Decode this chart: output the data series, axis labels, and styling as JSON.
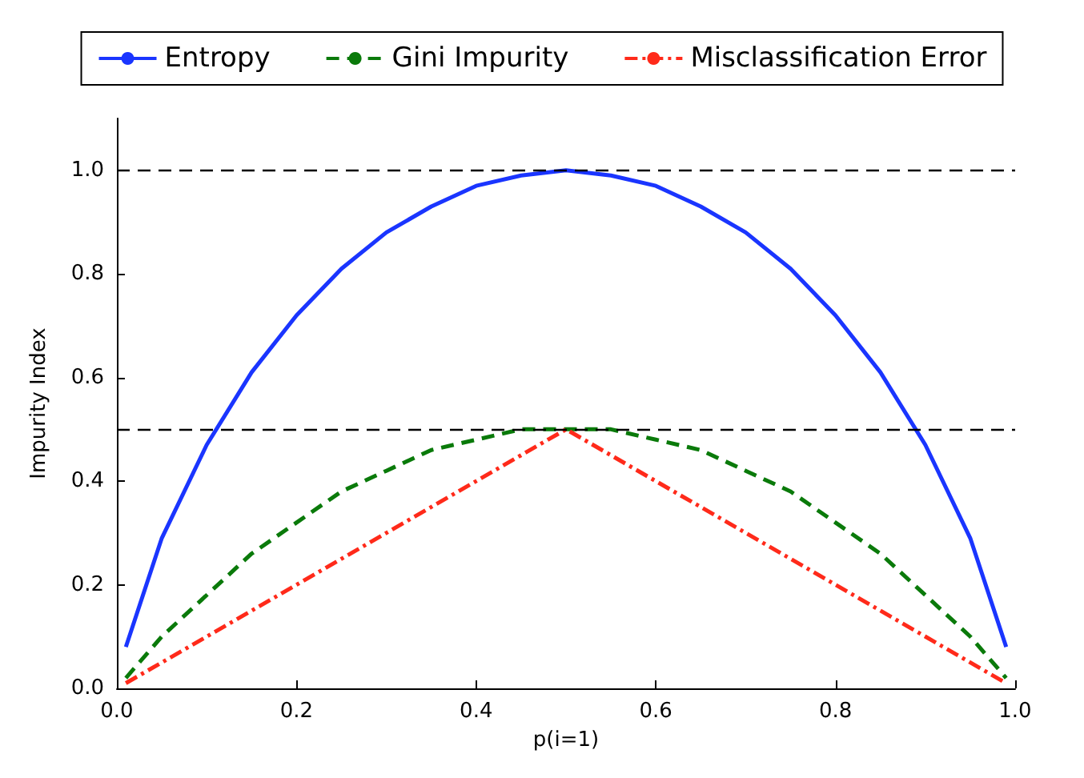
{
  "chart_data": {
    "type": "line",
    "xlabel": "p(i=1)",
    "ylabel": "Impurity Index",
    "xlim": [
      0,
      1
    ],
    "ylim": [
      0,
      1.1
    ],
    "xticks": [
      {
        "value": 0,
        "label": "0.0"
      },
      {
        "value": 0.2,
        "label": "0.2"
      },
      {
        "value": 0.4,
        "label": "0.4"
      },
      {
        "value": 0.6,
        "label": "0.6"
      },
      {
        "value": 0.8,
        "label": "0.8"
      },
      {
        "value": 1,
        "label": "1.0"
      }
    ],
    "yticks": [
      {
        "value": 0,
        "label": "0.0"
      },
      {
        "value": 0.2,
        "label": "0.2"
      },
      {
        "value": 0.4,
        "label": "0.4"
      },
      {
        "value": 0.6,
        "label": "0.6"
      },
      {
        "value": 0.8,
        "label": "0.8"
      },
      {
        "value": 1,
        "label": "1.0"
      }
    ],
    "x": [
      0.01,
      0.05,
      0.1,
      0.15,
      0.2,
      0.25,
      0.3,
      0.35,
      0.4,
      0.45,
      0.5,
      0.55,
      0.6,
      0.65,
      0.7,
      0.75,
      0.8,
      0.85,
      0.9,
      0.95,
      0.99
    ],
    "series": [
      {
        "name": "Entropy",
        "color": "#1a35ff",
        "line_style": "solid",
        "values": [
          0.08,
          0.29,
          0.47,
          0.61,
          0.72,
          0.81,
          0.88,
          0.93,
          0.97,
          0.99,
          1.0,
          0.99,
          0.97,
          0.93,
          0.88,
          0.81,
          0.72,
          0.61,
          0.47,
          0.29,
          0.08
        ]
      },
      {
        "name": "Gini Impurity",
        "color": "#0a7a0a",
        "line_style": "dashed",
        "values": [
          0.02,
          0.1,
          0.18,
          0.26,
          0.32,
          0.38,
          0.42,
          0.46,
          0.48,
          0.5,
          0.5,
          0.5,
          0.48,
          0.46,
          0.42,
          0.38,
          0.32,
          0.26,
          0.18,
          0.1,
          0.02
        ]
      },
      {
        "name": "Misclassification Error",
        "color": "#ff2a1a",
        "line_style": "dashdot",
        "values": [
          0.01,
          0.05,
          0.1,
          0.15,
          0.2,
          0.25,
          0.3,
          0.35,
          0.4,
          0.45,
          0.5,
          0.45,
          0.4,
          0.35,
          0.3,
          0.25,
          0.2,
          0.15,
          0.1,
          0.05,
          0.01
        ]
      }
    ],
    "ref_lines": [
      {
        "axis": "y",
        "value": 1.0,
        "color": "#000000",
        "line_style": "dashed"
      },
      {
        "axis": "y",
        "value": 0.5,
        "color": "#000000",
        "line_style": "dashed"
      }
    ],
    "grid": false,
    "legend": "top",
    "marker": "none"
  }
}
